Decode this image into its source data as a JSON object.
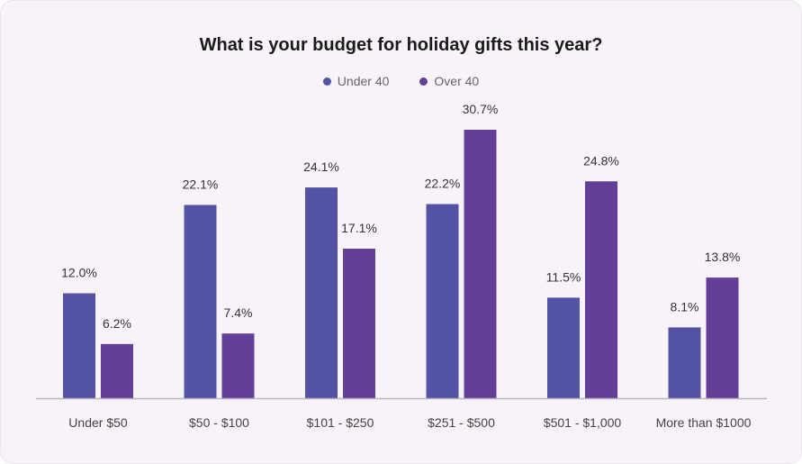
{
  "chart_data": {
    "type": "bar",
    "title": "What is your budget for holiday gifts this year?",
    "categories": [
      "Under $50",
      "$50 - $100",
      "$101 - $250",
      "$251 - $500",
      "$501 - $1,000",
      "More than $1000"
    ],
    "series": [
      {
        "name": "Under 40",
        "color": "#5352a3",
        "values": [
          12.0,
          22.1,
          24.1,
          22.2,
          11.5,
          8.1
        ],
        "labels": [
          "12.0%",
          "22.1%",
          "24.1%",
          "22.2%",
          "11.5%",
          "8.1%"
        ]
      },
      {
        "name": "Over 40",
        "color": "#643f98",
        "values": [
          6.2,
          7.4,
          17.1,
          30.7,
          24.8,
          13.8
        ],
        "labels": [
          "6.2%",
          "7.4%",
          "17.1%",
          "30.7%",
          "24.8%",
          "13.8%"
        ]
      }
    ],
    "xlabel": "",
    "ylabel": "",
    "ylim": [
      0,
      30.7
    ],
    "grid": false,
    "legend_position": "top-center"
  }
}
